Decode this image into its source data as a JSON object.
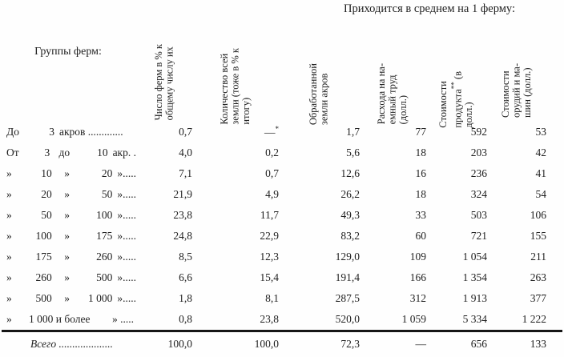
{
  "page": {
    "spanner": "Приходится в среднем на 1 ферму:",
    "groups_header": "Группы ферм:"
  },
  "columns": [
    {
      "name": "farms-percent-of-total",
      "lines": [
        "Число ферм в % к",
        "общему числу их"
      ]
    },
    {
      "name": "all-land-percent-of-total",
      "lines": [
        "Количество всей",
        "земли (тоже в % к",
        "итогу)"
      ]
    },
    {
      "name": "cultivated-land-acres",
      "lines": [
        "Обработанной",
        "земли акров"
      ]
    },
    {
      "name": "hired-labor-expense",
      "lines": [
        "Расхода на на-",
        "емный труд",
        "(долл.)"
      ]
    },
    {
      "name": "product-value",
      "lines": [
        "Стоимости",
        "продукта** (в",
        "долл.)"
      ]
    },
    {
      "name": "implements-machines-value",
      "lines": [
        "Стоимости",
        "орудий и ма-",
        "шин (долл.)"
      ]
    }
  ],
  "rows": [
    {
      "label": {
        "a": "До",
        "b": "3",
        "rest": "акров ............."
      },
      "values": [
        "0,7",
        "—*",
        "1,7",
        "77",
        "592",
        "53"
      ]
    },
    {
      "label": {
        "a": "От",
        "b": "3",
        "c": "до",
        "d": "10",
        "e": "акр. ."
      },
      "values": [
        "4,0",
        "0,2",
        "5,6",
        "18",
        "203",
        "42"
      ]
    },
    {
      "label": {
        "a": "»",
        "b": "10",
        "c": "»",
        "d": "20",
        "e": "»....."
      },
      "values": [
        "7,1",
        "0,7",
        "12,6",
        "16",
        "236",
        "41"
      ]
    },
    {
      "label": {
        "a": "»",
        "b": "20",
        "c": "»",
        "d": "50",
        "e": "»....."
      },
      "values": [
        "21,9",
        "4,9",
        "26,2",
        "18",
        "324",
        "54"
      ]
    },
    {
      "label": {
        "a": "»",
        "b": "50",
        "c": "»",
        "d": "100",
        "e": "»....."
      },
      "values": [
        "23,8",
        "11,7",
        "49,3",
        "33",
        "503",
        "106"
      ]
    },
    {
      "label": {
        "a": "»",
        "b": "100",
        "c": "»",
        "d": "175",
        "e": "»....."
      },
      "values": [
        "24,8",
        "22,9",
        "83,2",
        "60",
        "721",
        "155"
      ]
    },
    {
      "label": {
        "a": "»",
        "b": "175",
        "c": "»",
        "d": "260",
        "e": "»....."
      },
      "values": [
        "8,5",
        "12,3",
        "129,0",
        "109",
        "1 054",
        "211"
      ]
    },
    {
      "label": {
        "a": "»",
        "b": "260",
        "c": "»",
        "d": "500",
        "e": "»....."
      },
      "values": [
        "6,6",
        "15,4",
        "191,4",
        "166",
        "1 354",
        "263"
      ]
    },
    {
      "label": {
        "a": "»",
        "b": "500",
        "c": "»",
        "d": "1 000",
        "e": "»....."
      },
      "values": [
        "1,8",
        "8,1",
        "287,5",
        "312",
        "1 913",
        "377"
      ]
    },
    {
      "label": {
        "a": "»",
        "wide": "1 000 и более",
        "e": "» ....."
      },
      "values": [
        "0,8",
        "23,8",
        "520,0",
        "1 059",
        "5 334",
        "1 222"
      ]
    }
  ],
  "total": {
    "label": "Всего",
    "dots": "....................",
    "values": [
      "100,0",
      "100,0",
      "72,3",
      "—",
      "656",
      "133"
    ]
  }
}
